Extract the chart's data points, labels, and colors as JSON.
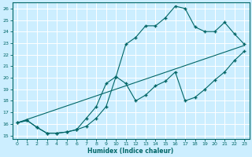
{
  "xlabel": "Humidex (Indice chaleur)",
  "bg_color": "#cceeff",
  "grid_color": "#ffffff",
  "line_color": "#006666",
  "xlim": [
    -0.5,
    23.5
  ],
  "ylim": [
    14.7,
    26.5
  ],
  "line1_x": [
    0,
    1,
    2,
    3,
    4,
    5,
    6,
    7,
    8,
    9,
    10,
    11,
    12,
    13,
    14,
    15,
    16,
    17,
    18,
    19,
    20,
    21,
    22,
    23
  ],
  "line1_y": [
    16.1,
    16.3,
    15.7,
    15.2,
    15.2,
    15.3,
    15.5,
    16.5,
    17.5,
    19.5,
    20.1,
    22.9,
    23.5,
    24.5,
    24.5,
    25.2,
    26.2,
    26.0,
    24.4,
    24.0,
    24.0,
    24.8,
    23.8,
    22.9
  ],
  "line2_x": [
    0,
    1,
    2,
    3,
    4,
    5,
    6,
    7,
    8,
    9,
    10,
    11,
    12,
    13,
    14,
    15,
    16,
    17,
    18,
    19,
    20,
    21,
    22,
    23
  ],
  "line2_y": [
    16.1,
    16.3,
    15.7,
    15.2,
    15.2,
    15.3,
    15.5,
    15.8,
    16.5,
    17.5,
    20.1,
    19.5,
    18.0,
    18.5,
    19.3,
    19.7,
    20.5,
    18.0,
    18.3,
    19.0,
    19.8,
    20.5,
    21.5,
    22.3
  ],
  "line3_x": [
    0,
    23
  ],
  "line3_y": [
    16.1,
    22.8
  ]
}
